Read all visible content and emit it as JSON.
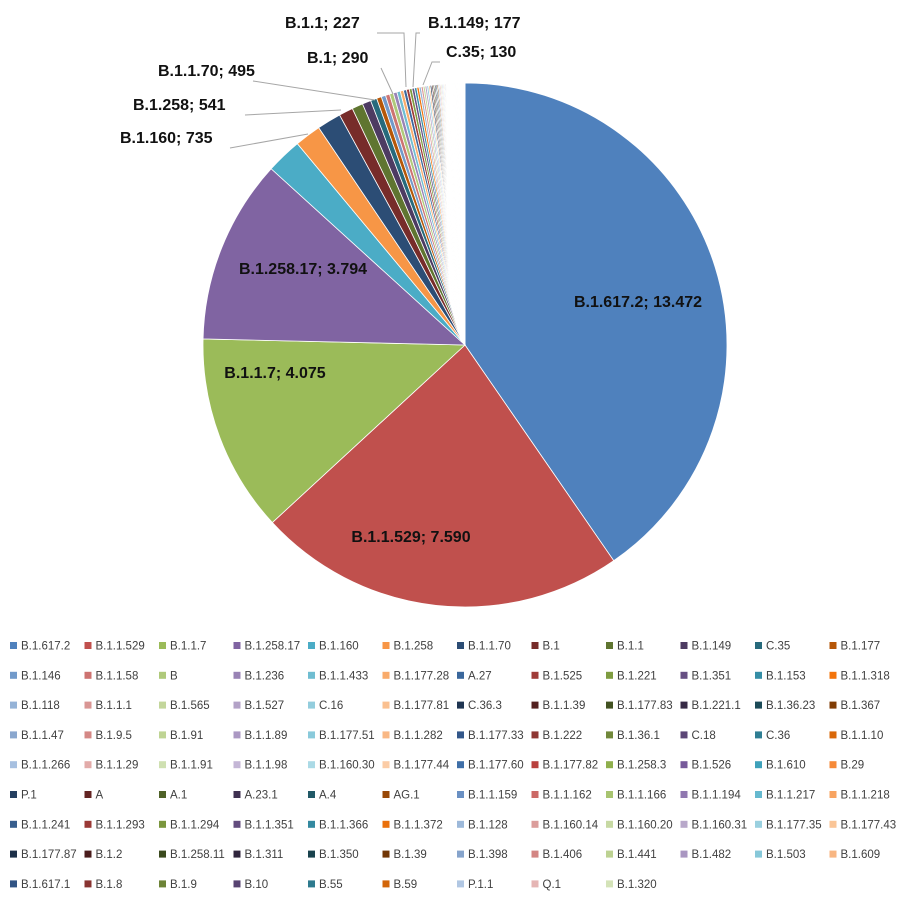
{
  "chart_data": {
    "type": "pie",
    "title": "",
    "legend_position": "bottom",
    "label_separator": "; ",
    "slices": [
      {
        "name": "B.1.617.2",
        "value": 13472,
        "label": "13.472",
        "color": "#4F81BD",
        "show_label": true
      },
      {
        "name": "B.1.1.529",
        "value": 7590,
        "label": "7.590",
        "color": "#C0504D",
        "show_label": true
      },
      {
        "name": "B.1.1.7",
        "value": 4075,
        "label": "4.075",
        "color": "#9BBB59",
        "show_label": true
      },
      {
        "name": "B.1.258.17",
        "value": 3794,
        "label": "3.794",
        "color": "#8064A2",
        "show_label": true
      },
      {
        "name": "B.1.160",
        "value": 735,
        "label": "735",
        "color": "#4BACC6",
        "show_label": true
      },
      {
        "name": "B.1.258",
        "value": 541,
        "label": "541",
        "color": "#F79646",
        "show_label": true
      },
      {
        "name": "B.1.1.70",
        "value": 495,
        "label": "495",
        "color": "#2C4D75",
        "show_label": true
      },
      {
        "name": "B.1",
        "value": 290,
        "label": "290",
        "color": "#772C2A",
        "show_label": true
      },
      {
        "name": "B.1.1",
        "value": 227,
        "label": "227",
        "color": "#5F7530",
        "show_label": true
      },
      {
        "name": "B.1.149",
        "value": 177,
        "label": "177",
        "color": "#4D3B62",
        "show_label": true
      },
      {
        "name": "C.35",
        "value": 130,
        "label": "130",
        "color": "#276A7C",
        "show_label": true
      },
      {
        "name": "B.1.177",
        "value": 100,
        "color": "#B65708"
      },
      {
        "name": "B.1.146",
        "value": 90,
        "color": "#729ACA"
      },
      {
        "name": "B.1.1.58",
        "value": 85,
        "color": "#CD7371"
      },
      {
        "name": "B",
        "value": 80,
        "color": "#AFC97A"
      },
      {
        "name": "B.1.236",
        "value": 75,
        "color": "#9983B5"
      },
      {
        "name": "B.1.1.433",
        "value": 70,
        "color": "#6FBDD1"
      },
      {
        "name": "B.1.177.28",
        "value": 66,
        "color": "#F9AB6B"
      },
      {
        "name": "A.27",
        "value": 62,
        "color": "#3A679C"
      },
      {
        "name": "B.1.525",
        "value": 58,
        "color": "#9F3B38"
      },
      {
        "name": "B.1.221",
        "value": 55,
        "color": "#7E9C40"
      },
      {
        "name": "B.1.351",
        "value": 52,
        "color": "#664F83"
      },
      {
        "name": "B.1.153",
        "value": 49,
        "color": "#358EA6"
      },
      {
        "name": "B.1.1.318",
        "value": 46,
        "color": "#F3740B"
      },
      {
        "name": "B.1.118",
        "value": 43,
        "color": "#95B3D7"
      },
      {
        "name": "B.1.1.1",
        "value": 41,
        "color": "#D99694"
      },
      {
        "name": "B.1.565",
        "value": 39,
        "color": "#C3D69B"
      },
      {
        "name": "B.1.527",
        "value": 37,
        "color": "#B3A2C7"
      },
      {
        "name": "C.16",
        "value": 35,
        "color": "#93CDDD"
      },
      {
        "name": "B.1.177.81",
        "value": 33,
        "color": "#FAC090"
      },
      {
        "name": "C.36.3",
        "value": 31,
        "color": "#1F3552"
      },
      {
        "name": "B.1.1.39",
        "value": 29,
        "color": "#532120"
      },
      {
        "name": "B.1.177.83",
        "value": 28,
        "color": "#425221"
      },
      {
        "name": "B.1.221.1",
        "value": 27,
        "color": "#362A45"
      },
      {
        "name": "B.1.36.23",
        "value": 26,
        "color": "#1B4A57"
      },
      {
        "name": "B.1.367",
        "value": 25,
        "color": "#803D05"
      },
      {
        "name": "B.1.1.47",
        "value": 24,
        "color": "#8AA7CE"
      },
      {
        "name": "B.1.9.5",
        "value": 23,
        "color": "#D48886"
      },
      {
        "name": "B.1.91",
        "value": 22,
        "color": "#BFD494"
      },
      {
        "name": "B.1.1.89",
        "value": 21,
        "color": "#AB98C3"
      },
      {
        "name": "B.1.177.51",
        "value": 20,
        "color": "#8ACADB"
      },
      {
        "name": "B.1.1.282",
        "value": 19,
        "color": "#F9B885"
      },
      {
        "name": "B.1.177.33",
        "value": 18,
        "color": "#33578A"
      },
      {
        "name": "B.1.222",
        "value": 17,
        "color": "#8E3633"
      },
      {
        "name": "B.1.36.1",
        "value": 16,
        "color": "#71883A"
      },
      {
        "name": "C.18",
        "value": 15,
        "color": "#5B4676"
      },
      {
        "name": "C.36",
        "value": 15,
        "color": "#2F7E93"
      },
      {
        "name": "B.1.1.10",
        "value": 14,
        "color": "#D9680A"
      },
      {
        "name": "B.1.1.266",
        "value": 14,
        "color": "#A7C0E0"
      },
      {
        "name": "B.1.1.29",
        "value": 13,
        "color": "#E2ABA9"
      },
      {
        "name": "B.1.1.91",
        "value": 13,
        "color": "#CFE0B1"
      },
      {
        "name": "B.1.1.98",
        "value": 12,
        "color": "#C4B6D6"
      },
      {
        "name": "B.1.160.30",
        "value": 12,
        "color": "#ABDAE6"
      },
      {
        "name": "B.1.177.44",
        "value": 11,
        "color": "#FBCCA6"
      },
      {
        "name": "B.1.177.60",
        "value": 11,
        "color": "#3F6FA8"
      },
      {
        "name": "B.1.177.82",
        "value": 10,
        "color": "#B9413E"
      },
      {
        "name": "B.1.258.3",
        "value": 10,
        "color": "#8FAF4C"
      },
      {
        "name": "B.1.526",
        "value": 10,
        "color": "#76599A"
      },
      {
        "name": "B.1.610",
        "value": 9,
        "color": "#3FA1BA"
      },
      {
        "name": "B.29",
        "value": 9,
        "color": "#F68A38"
      },
      {
        "name": "P.1",
        "value": 9,
        "color": "#243F60"
      },
      {
        "name": "A",
        "value": 8,
        "color": "#632423"
      },
      {
        "name": "A.1",
        "value": 8,
        "color": "#4F6228"
      },
      {
        "name": "A.23.1",
        "value": 8,
        "color": "#3F3151"
      },
      {
        "name": "A.4",
        "value": 7,
        "color": "#215967"
      },
      {
        "name": "AG.1",
        "value": 7,
        "color": "#984807"
      },
      {
        "name": "B.1.1.159",
        "value": 7,
        "color": "#6A90C3"
      },
      {
        "name": "B.1.1.162",
        "value": 7,
        "color": "#CB6966"
      },
      {
        "name": "B.1.1.166",
        "value": 6,
        "color": "#A8C470"
      },
      {
        "name": "B.1.1.194",
        "value": 6,
        "color": "#9078B0"
      },
      {
        "name": "B.1.1.217",
        "value": 6,
        "color": "#66B9CF"
      },
      {
        "name": "B.1.1.218",
        "value": 6,
        "color": "#F8A461"
      },
      {
        "name": "B.1.1.241",
        "value": 5,
        "color": "#375E8D"
      },
      {
        "name": "B.1.1.293",
        "value": 5,
        "color": "#9A3936"
      },
      {
        "name": "B.1.1.294",
        "value": 5,
        "color": "#7A963D"
      },
      {
        "name": "B.1.1.351",
        "value": 5,
        "color": "#634C7E"
      },
      {
        "name": "B.1.1.366",
        "value": 5,
        "color": "#3389A0"
      },
      {
        "name": "B.1.1.372",
        "value": 5,
        "color": "#EA700B"
      },
      {
        "name": "B.1.128",
        "value": 4,
        "color": "#9DB9DA"
      },
      {
        "name": "B.1.160.14",
        "value": 4,
        "color": "#DB9D9B"
      },
      {
        "name": "B.1.160.20",
        "value": 4,
        "color": "#C7D9A3"
      },
      {
        "name": "B.1.160.31",
        "value": 4,
        "color": "#B8A8CA"
      },
      {
        "name": "B.1.177.35",
        "value": 4,
        "color": "#9AD0DF"
      },
      {
        "name": "B.1.177.43",
        "value": 4,
        "color": "#FAC597"
      },
      {
        "name": "B.1.177.87",
        "value": 3,
        "color": "#1C2F48"
      },
      {
        "name": "B.1.2",
        "value": 3,
        "color": "#4A1D1C"
      },
      {
        "name": "B.1.258.11",
        "value": 3,
        "color": "#3B4A1E"
      },
      {
        "name": "B.1.311",
        "value": 3,
        "color": "#30253D"
      },
      {
        "name": "B.1.350",
        "value": 3,
        "color": "#19424D"
      },
      {
        "name": "B.1.39",
        "value": 3,
        "color": "#723605"
      },
      {
        "name": "B.1.398",
        "value": 3,
        "color": "#86A4CC"
      },
      {
        "name": "B.1.406",
        "value": 3,
        "color": "#D38583"
      },
      {
        "name": "B.1.441",
        "value": 2,
        "color": "#BDD292"
      },
      {
        "name": "B.1.482",
        "value": 2,
        "color": "#A996C1"
      },
      {
        "name": "B.1.503",
        "value": 2,
        "color": "#87C8D9"
      },
      {
        "name": "B.1.609",
        "value": 2,
        "color": "#F8B682"
      },
      {
        "name": "B.1.617.1",
        "value": 2,
        "color": "#315484"
      },
      {
        "name": "B.1.8",
        "value": 2,
        "color": "#883431"
      },
      {
        "name": "B.1.9",
        "value": 2,
        "color": "#6D8337"
      },
      {
        "name": "B.10",
        "value": 2,
        "color": "#574371"
      },
      {
        "name": "B.55",
        "value": 2,
        "color": "#2D7A8E"
      },
      {
        "name": "B.59",
        "value": 2,
        "color": "#D26509"
      },
      {
        "name": "P.1.1",
        "value": 1,
        "color": "#B1C7E3"
      },
      {
        "name": "Q.1",
        "value": 1,
        "color": "#E5B5B4"
      },
      {
        "name": "B.1.320",
        "value": 1,
        "color": "#D4E3B8"
      }
    ]
  }
}
